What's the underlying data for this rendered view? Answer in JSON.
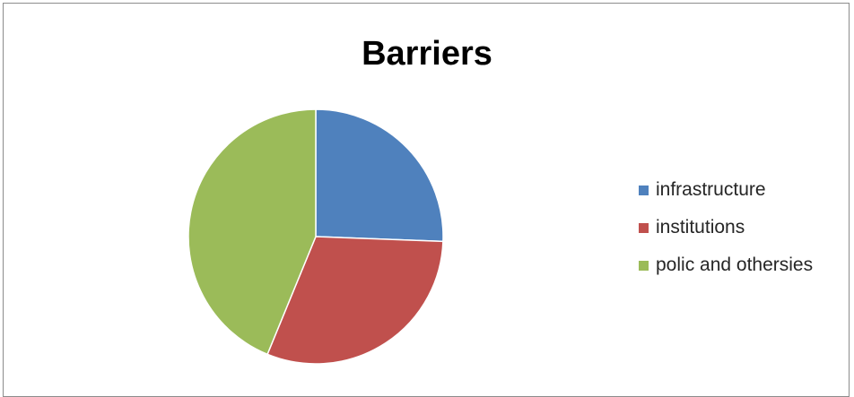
{
  "chart_data": {
    "type": "pie",
    "title": "Barriers",
    "legend_position": "right",
    "categories": [
      "infrastructure",
      "institutions",
      "polic and othersies"
    ],
    "values": [
      25.6,
      30.6,
      43.8
    ],
    "colors": [
      "#4f81bd",
      "#c0504d",
      "#9bbb59"
    ],
    "start_angle_deg": 0,
    "direction": "clockwise"
  }
}
